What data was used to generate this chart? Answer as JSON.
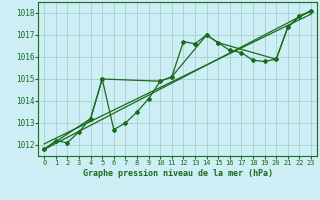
{
  "title": "Graphe pression niveau de la mer (hPa)",
  "bg_color": "#cceef4",
  "line_color": "#1a6b1a",
  "grid_color": "#aad4d4",
  "ylim": [
    1011.5,
    1018.5
  ],
  "xlim": [
    -0.5,
    23.5
  ],
  "yticks": [
    1012,
    1013,
    1014,
    1015,
    1016,
    1017,
    1018
  ],
  "xticks": [
    0,
    1,
    2,
    3,
    4,
    5,
    6,
    7,
    8,
    9,
    10,
    11,
    12,
    13,
    14,
    15,
    16,
    17,
    18,
    19,
    20,
    21,
    22,
    23
  ],
  "series1_x": [
    0,
    1,
    2,
    3,
    4,
    5,
    6,
    7,
    8,
    9,
    10,
    11,
    12,
    13,
    14,
    15,
    16,
    17,
    18,
    19,
    20,
    21,
    22,
    23
  ],
  "series1_y": [
    1011.8,
    1012.2,
    1012.1,
    1012.6,
    1013.2,
    1015.0,
    1012.7,
    1013.0,
    1013.5,
    1014.1,
    1014.9,
    1015.1,
    1016.7,
    1016.6,
    1017.0,
    1016.65,
    1016.3,
    1016.2,
    1015.85,
    1015.8,
    1015.9,
    1017.35,
    1017.85,
    1018.1
  ],
  "series2_x": [
    0,
    4,
    5,
    10,
    11,
    14,
    15,
    20,
    21,
    22,
    23
  ],
  "series2_y": [
    1011.8,
    1013.2,
    1015.0,
    1014.9,
    1015.1,
    1017.0,
    1016.65,
    1015.9,
    1017.35,
    1017.85,
    1018.1
  ],
  "series3_x": [
    0,
    23
  ],
  "series3_y": [
    1011.8,
    1018.1
  ],
  "series4_x": [
    0,
    23
  ],
  "series4_y": [
    1012.05,
    1017.95
  ]
}
